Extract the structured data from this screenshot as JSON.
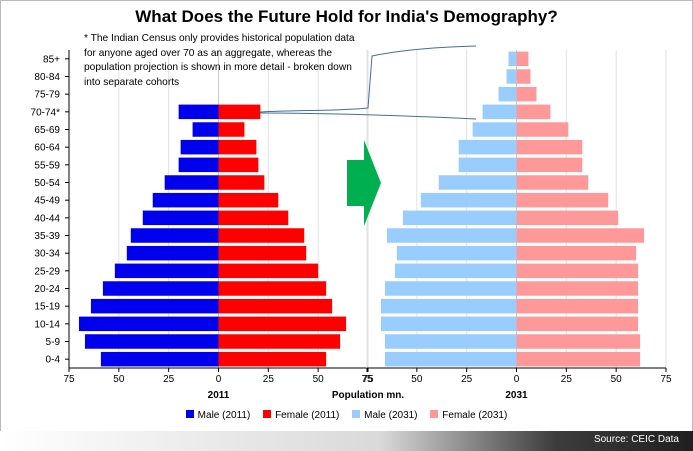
{
  "title": "What Does the Future Hold for India's Demography?",
  "note": "* The Indian Census only provides historical population data for anyone aged over 70 as an aggregate, whereas the population projection is shown in more detail - broken down into separate cohorts",
  "source": "Source: CEIC Data",
  "chart_data": {
    "type": "bar",
    "orientation": "horizontal",
    "xlabel": "Population mn.",
    "categories": [
      "0-4",
      "5-9",
      "10-14",
      "15-19",
      "20-24",
      "25-29",
      "30-34",
      "35-39",
      "40-44",
      "45-49",
      "50-54",
      "55-59",
      "60-64",
      "65-69",
      "70-74*",
      "75-79",
      "80-84",
      "85+"
    ],
    "xlim": [
      -75,
      75
    ],
    "xticks": [
      "75",
      "50",
      "25",
      "0",
      "25",
      "50",
      "75"
    ],
    "panels": [
      {
        "label": "2011",
        "series": [
          {
            "name": "Male (2011)",
            "color": "#0000ee",
            "side": "left",
            "values": [
              59,
              67,
              70,
              64,
              58,
              52,
              46,
              44,
              38,
              33,
              27,
              20,
              19,
              13,
              20,
              0,
              0,
              0
            ]
          },
          {
            "name": "Female (2011)",
            "color": "#ff0000",
            "side": "right",
            "values": [
              54,
              61,
              64,
              57,
              54,
              50,
              44,
              43,
              35,
              30,
              23,
              20,
              19,
              13,
              21,
              0,
              0,
              0
            ]
          }
        ]
      },
      {
        "label": "2031",
        "series": [
          {
            "name": "Male (2031)",
            "color": "#99ccff",
            "side": "left",
            "values": [
              66,
              66,
              68,
              68,
              66,
              61,
              60,
              65,
              57,
              48,
              39,
              29,
              29,
              22,
              17,
              9,
              5,
              4
            ]
          },
          {
            "name": "Female (2031)",
            "color": "#ff9999",
            "side": "right",
            "values": [
              62,
              62,
              61,
              61,
              61,
              61,
              60,
              64,
              51,
              46,
              36,
              33,
              33,
              26,
              17,
              10,
              7,
              6
            ]
          }
        ]
      }
    ],
    "legend": [
      "Male (2011)",
      "Female (2011)",
      "Male (2031)",
      "Female (2031)"
    ],
    "legend_position": "bottom",
    "grid": true
  }
}
